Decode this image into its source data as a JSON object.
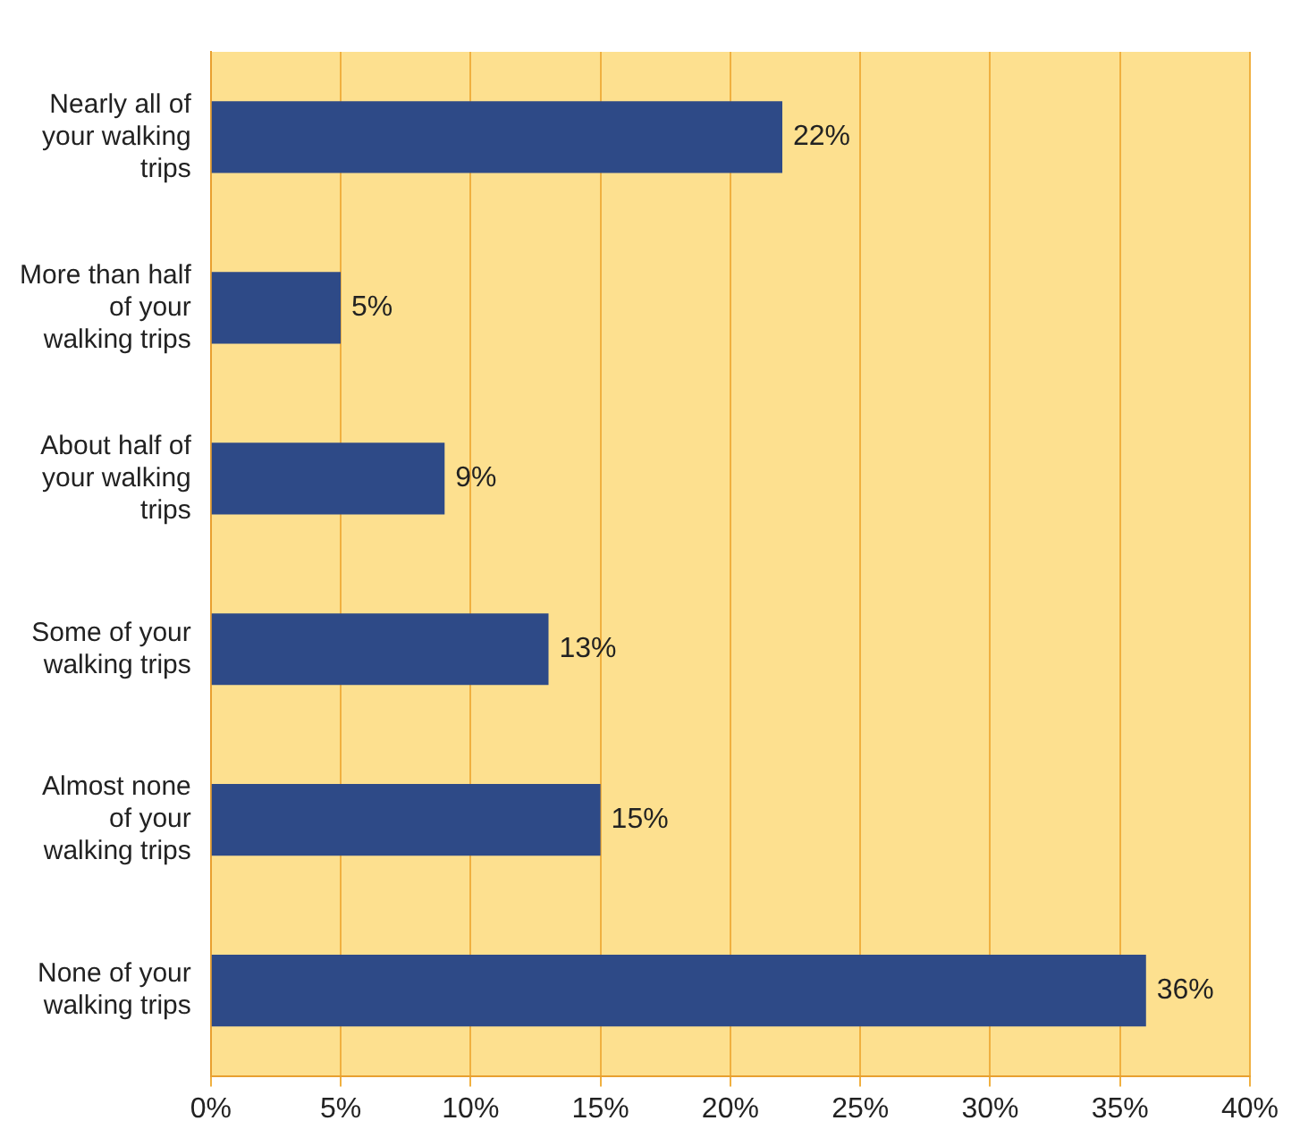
{
  "chart_data": {
    "type": "bar",
    "orientation": "horizontal",
    "categories": [
      "Nearly all of your walking trips",
      "More than half of your walking trips",
      "About half of your walking trips",
      "Some of your walking trips",
      "Almost none of your walking trips",
      "None of your walking trips"
    ],
    "values": [
      22,
      5,
      9,
      13,
      15,
      36
    ],
    "value_labels": [
      "22%",
      "5%",
      "9%",
      "13%",
      "15%",
      "36%"
    ],
    "color": "#2e4a87",
    "xlim": [
      0,
      40
    ],
    "xticks": [
      {
        "value": 0,
        "label": "0%"
      },
      {
        "value": 5,
        "label": "5%"
      },
      {
        "value": 10,
        "label": "10%"
      },
      {
        "value": 15,
        "label": "15%"
      },
      {
        "value": 20,
        "label": "20%"
      },
      {
        "value": 25,
        "label": "25%"
      },
      {
        "value": 30,
        "label": "30%"
      },
      {
        "value": 35,
        "label": "35%"
      },
      {
        "value": 40,
        "label": "40%"
      }
    ],
    "grid": "x"
  }
}
